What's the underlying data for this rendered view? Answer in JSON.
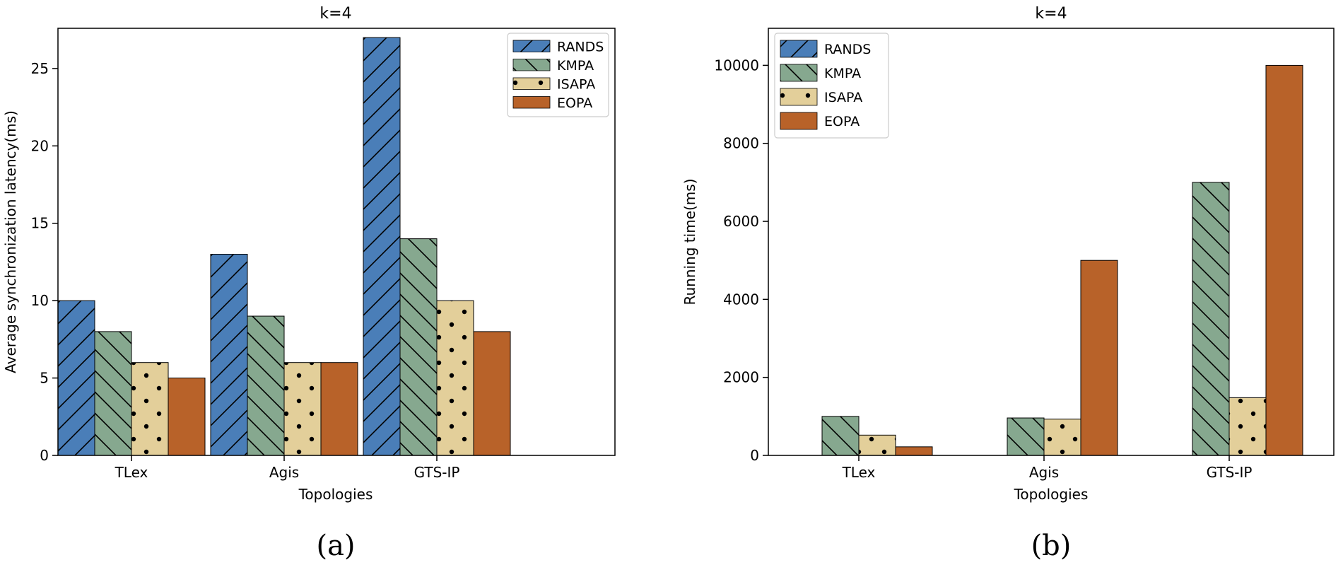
{
  "chart_data": [
    {
      "type": "bar",
      "title": "k=4",
      "xlabel": "Topologies",
      "ylabel": "Average synchronization latency(ms)",
      "ylim": [
        0,
        27.6
      ],
      "yticks": [
        0,
        5,
        10,
        15,
        20,
        25
      ],
      "categories": [
        "TLex",
        "Agis",
        "GTS-IP"
      ],
      "series": [
        {
          "name": "RANDS",
          "values": [
            10,
            13,
            27
          ]
        },
        {
          "name": "KMPA",
          "values": [
            8,
            9,
            14
          ]
        },
        {
          "name": "ISAPA",
          "values": [
            6,
            6,
            10
          ]
        },
        {
          "name": "EOPA",
          "values": [
            5,
            6,
            8
          ]
        }
      ],
      "legend": "top-right",
      "grid": false,
      "caption": "(a)"
    },
    {
      "type": "bar",
      "title": "k=4",
      "xlabel": "Topologies",
      "ylabel": "Running time(ms)",
      "ylim": [
        0,
        10950
      ],
      "yticks": [
        0,
        2000,
        4000,
        6000,
        8000,
        10000
      ],
      "categories": [
        "TLex",
        "Agis",
        "GTS-IP"
      ],
      "series": [
        {
          "name": "RANDS",
          "values": [
            0,
            0,
            0
          ]
        },
        {
          "name": "KMPA",
          "values": [
            1000,
            960,
            7000
          ]
        },
        {
          "name": "ISAPA",
          "values": [
            520,
            930,
            1480
          ]
        },
        {
          "name": "EOPA",
          "values": [
            220,
            5000,
            10000
          ]
        }
      ],
      "legend": "top-left",
      "grid": false,
      "caption": "(b)"
    }
  ],
  "colors": {
    "RANDS": "#4a7eb8",
    "KMPA": "#86a88f",
    "ISAPA": "#e3cf9a",
    "EOPA": "#b86229"
  },
  "patterns": {
    "RANDS": "forward-diagonal-hatch",
    "KMPA": "back-diagonal-hatch",
    "ISAPA": "dots",
    "EOPA": "solid"
  }
}
